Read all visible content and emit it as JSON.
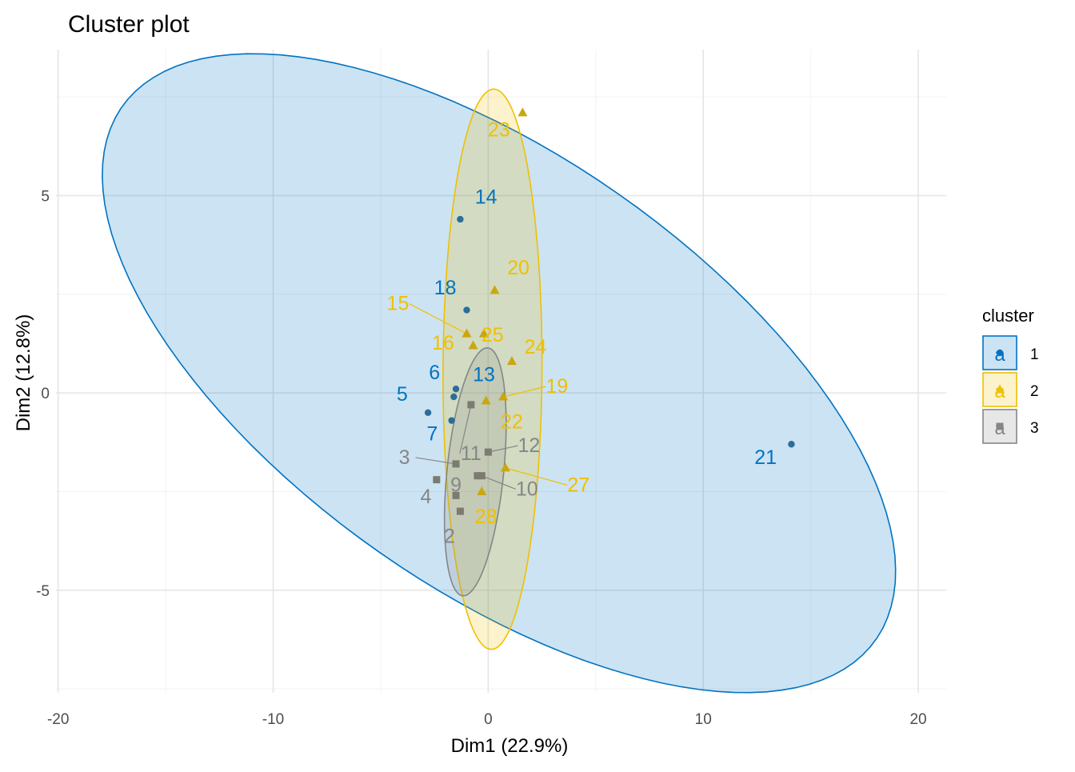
{
  "chart_data": {
    "type": "scatter",
    "title": "Cluster plot",
    "xlabel": "Dim1 (22.9%)",
    "ylabel": "Dim2 (12.8%)",
    "xlim": [
      -20.1,
      21.3
    ],
    "ylim": [
      -7.6,
      8.7
    ],
    "x_ticks": [
      -20,
      -10,
      0,
      10,
      20
    ],
    "y_ticks": [
      -5,
      0,
      5
    ],
    "x_tick_labels": [
      "-20",
      "-10",
      "0",
      "10",
      "20"
    ],
    "y_tick_labels": [
      "-5",
      "0",
      "5"
    ],
    "grid": true,
    "legend": {
      "title": "cluster",
      "position": "right",
      "items": [
        {
          "label": "1",
          "key_glyph": "a",
          "color": "#0073C2"
        },
        {
          "label": "2",
          "key_glyph": "a",
          "color": "#EFC000"
        },
        {
          "label": "3",
          "key_glyph": "a",
          "color": "#868686"
        }
      ]
    },
    "series": [
      {
        "name": "1",
        "color": "#0073C2",
        "shape": "circle",
        "hull": {
          "cx": 0.5,
          "cy": 0.5,
          "rx": 19.2,
          "ry": 6.1,
          "angle_deg": -17
        },
        "points": [
          {
            "label": "14",
            "x": -1.3,
            "y": 4.4,
            "label_dx": 1.2,
            "label_dy": 0.4
          },
          {
            "label": "18",
            "x": -1.0,
            "y": 2.1,
            "label_dx": -1.0,
            "label_dy": 0.4
          },
          {
            "label": "6",
            "x": -1.5,
            "y": 0.1,
            "label_dx": -1.0,
            "label_dy": 0.25
          },
          {
            "label": "13",
            "x": -1.6,
            "y": -0.1,
            "label_dx": 1.4,
            "label_dy": 0.4
          },
          {
            "label": "5",
            "x": -2.8,
            "y": -0.5,
            "label_dx": -1.2,
            "label_dy": 0.3
          },
          {
            "label": "7",
            "x": -1.7,
            "y": -0.7,
            "label_dx": -0.9,
            "label_dy": -0.5
          },
          {
            "label": "21",
            "x": 14.1,
            "y": -1.3,
            "label_dx": -1.2,
            "label_dy": -0.5
          }
        ]
      },
      {
        "name": "2",
        "color": "#EFC000",
        "shape": "triangle",
        "hull": {
          "cx": 0.2,
          "cy": 0.6,
          "rx": 7.1,
          "ry": 2.3,
          "angle_deg": 89.5
        },
        "points": [
          {
            "label": "23",
            "x": 1.6,
            "y": 7.1,
            "label_dx": -1.1,
            "label_dy": -0.6
          },
          {
            "label": "20",
            "x": 0.3,
            "y": 2.6,
            "label_dx": 1.1,
            "label_dy": 0.4
          },
          {
            "label": "15",
            "x": -1.0,
            "y": 1.5,
            "label_dx": -3.2,
            "label_dy": 0.6,
            "leader": true
          },
          {
            "label": "25",
            "x": -0.2,
            "y": 1.5,
            "label_dx": 0.4,
            "label_dy": -0.2
          },
          {
            "label": "16",
            "x": -0.7,
            "y": 1.2,
            "label_dx": -1.4,
            "label_dy": -0.1
          },
          {
            "label": "24",
            "x": 1.1,
            "y": 0.8,
            "label_dx": 1.1,
            "label_dy": 0.2
          },
          {
            "label": "19",
            "x": 0.7,
            "y": -0.1,
            "label_dx": 2.5,
            "label_dy": 0.1,
            "leader": true
          },
          {
            "label": "22",
            "x": -0.1,
            "y": -0.2,
            "label_dx": 1.2,
            "label_dy": -0.7
          },
          {
            "label": "27",
            "x": 0.8,
            "y": -1.9,
            "label_dx": 3.4,
            "label_dy": -0.6,
            "leader": true
          },
          {
            "label": "28",
            "x": -0.3,
            "y": -2.5,
            "label_dx": 0.2,
            "label_dy": -0.8
          }
        ]
      },
      {
        "name": "3",
        "color": "#868686",
        "shape": "square",
        "hull": {
          "cx": -0.6,
          "cy": -2.0,
          "rx": 3.2,
          "ry": 1.3,
          "angle_deg": 78
        },
        "points": [
          {
            "label": "11",
            "x": -0.8,
            "y": -0.3,
            "label_dx": 0.0,
            "label_dy": -1.4,
            "leader": true
          },
          {
            "label": "12",
            "x": 0.0,
            "y": -1.5,
            "label_dx": 1.9,
            "label_dy": 0.0,
            "leader": true
          },
          {
            "label": "3",
            "x": -1.5,
            "y": -1.8,
            "label_dx": -2.4,
            "label_dy": 0.0,
            "leader": true
          },
          {
            "label": "9",
            "x": -0.5,
            "y": -2.1,
            "label_dx": -1.0,
            "label_dy": -0.4
          },
          {
            "label": "10",
            "x": -0.3,
            "y": -2.1,
            "label_dx": 2.1,
            "label_dy": -0.5,
            "leader": true
          },
          {
            "label": "(unlabeled)",
            "x": -2.4,
            "y": -2.2,
            "label_dx": 0,
            "label_dy": 0,
            "hide_label": true
          },
          {
            "label": "4",
            "x": -1.5,
            "y": -2.6,
            "label_dx": -1.4,
            "label_dy": -0.2
          },
          {
            "label": "2",
            "x": -1.3,
            "y": -3.0,
            "label_dx": -0.5,
            "label_dy": -0.8
          }
        ]
      }
    ]
  }
}
